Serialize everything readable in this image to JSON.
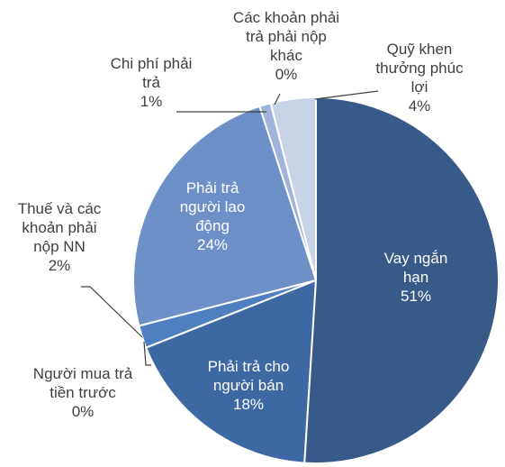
{
  "chart_data": {
    "type": "pie",
    "categories": [
      "Vay ngắn hạn",
      "Phải trả cho người bán",
      "Người mua trả tiền trước",
      "Thuế và các khoản phải nộp NN",
      "Phải trả người lao động",
      "Chi phí phải trả",
      "Các khoản phải trả phải nộp khác",
      "Quỹ khen thưởng phúc lợi"
    ],
    "values": [
      51,
      18,
      0,
      2,
      24,
      1,
      0,
      4
    ],
    "value_labels": [
      "51%",
      "18%",
      "0%",
      "2%",
      "24%",
      "1%",
      "0%",
      "4%"
    ],
    "colors": [
      "#375a88",
      "#3e68a3",
      "#4a78b8",
      "#4f7fc0",
      "#6d90c8",
      "#9fb4da",
      "#b7c6e2",
      "#c9d3e7"
    ]
  }
}
